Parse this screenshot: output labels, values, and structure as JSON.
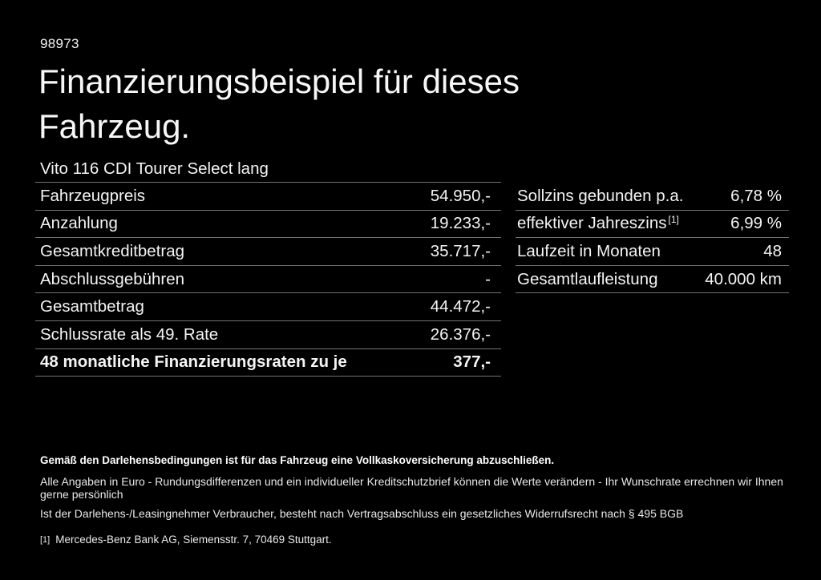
{
  "page": {
    "ref_number": "98973",
    "title": "Finanzierungsbeispiel für dieses Fahrzeug.",
    "subtitle": "Vito 116 CDI Tourer Select lang"
  },
  "finance_table": {
    "rows": [
      {
        "label": "Fahrzeugpreis",
        "value": "54.950,-"
      },
      {
        "label": "Anzahlung",
        "value": "19.233,-"
      },
      {
        "label": "Gesamtkreditbetrag",
        "value": "35.717,-"
      },
      {
        "label": "Abschlussgebühren",
        "value": "-"
      },
      {
        "label": "Gesamtbetrag",
        "value": "44.472,-"
      },
      {
        "label": "Schlussrate als 49. Rate",
        "value": "26.376,-"
      },
      {
        "label": "48 monatliche Finanzierungsraten zu je",
        "value": "377,-"
      }
    ]
  },
  "conditions_table": {
    "rows": [
      {
        "label": "Sollzins gebunden p.a.",
        "value": "6,78 %"
      },
      {
        "label": "effektiver Jahreszins",
        "sup": "[1]",
        "value": "6,99 %"
      },
      {
        "label": "Laufzeit in Monaten",
        "value": "48"
      },
      {
        "label": "Gesamtlaufleistung",
        "value": "40.000 km"
      }
    ]
  },
  "footer": {
    "insurance_note": "Gemäß den Darlehensbedingungen ist für das Fahrzeug eine Vollkaskoversicherung abzuschließen.",
    "disclaimer_line1": "Alle Angaben in Euro - Rundungsdifferenzen und ein individueller Kreditschutzbrief können die Werte verändern - Ihr Wunschrate errechnen wir Ihnen gerne persönlich",
    "disclaimer_line2": "Ist der Darlehens-/Leasingnehmer Verbraucher, besteht nach Vertragsabschluss ein gesetzliches Widerrufsrecht nach § 495 BGB",
    "footnote_marker": "[1]",
    "footnote_text": "Mercedes-Benz Bank AG, Siemensstr. 7, 70469 Stuttgart."
  },
  "colors": {
    "background": "#000000",
    "text": "#f4f4f4",
    "divider": "#747474"
  }
}
